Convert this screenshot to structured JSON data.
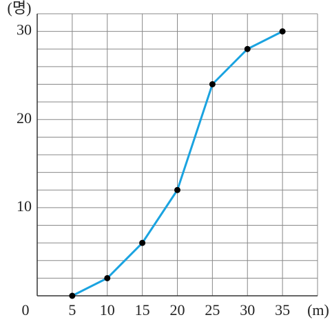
{
  "chart_data": {
    "type": "line",
    "y_label": "(명)",
    "x_label": "(m)",
    "x": [
      5,
      10,
      15,
      20,
      25,
      30,
      35
    ],
    "series": [
      {
        "color": "#1aa3e0",
        "values": [
          0,
          2,
          6,
          12,
          24,
          28,
          30
        ]
      }
    ],
    "xlim": [
      0,
      40
    ],
    "xticks": [
      0,
      5,
      10,
      15,
      20,
      25,
      30,
      35
    ],
    "xgrid": [
      5,
      10,
      15,
      20,
      25,
      30,
      35,
      40
    ],
    "ylim": [
      0,
      32
    ],
    "yticks": [
      10,
      20,
      30
    ],
    "ygrid": [
      0,
      2,
      4,
      6,
      8,
      10,
      12,
      14,
      16,
      18,
      20,
      22,
      24,
      26,
      28,
      30,
      32
    ],
    "grid": true
  }
}
